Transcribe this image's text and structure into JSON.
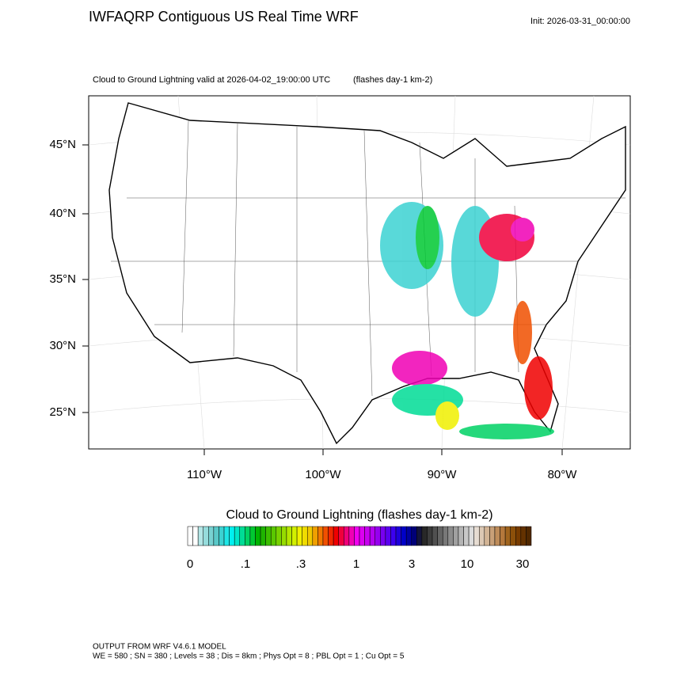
{
  "header": {
    "title": "IWFAQRP Contiguous US Real Time WRF",
    "init": "Init: 2026-03-31_00:00:00"
  },
  "map": {
    "subtitle": "Cloud to Ground Lightning valid at 2026-04-02_19:00:00 UTC",
    "units": "(flashes day-1 km-2)",
    "lat_labels": [
      "45°N",
      "40°N",
      "35°N",
      "30°N",
      "25°N"
    ],
    "lon_labels": [
      "110°W",
      "100°W",
      "90°W",
      "80°W"
    ]
  },
  "colorbar": {
    "title": "Cloud to Ground Lightning  (flashes day-1 km-2)",
    "labels": [
      "0",
      ".1",
      ".3",
      "1",
      "3",
      "10",
      "30"
    ],
    "colors": [
      "#ffffff",
      "#ffffff",
      "#b4e6e6",
      "#96dcdc",
      "#78d2d2",
      "#5ac8c8",
      "#3cd2d2",
      "#1ee6e6",
      "#00f0f0",
      "#00e6c8",
      "#00dc96",
      "#00d264",
      "#00c832",
      "#00b400",
      "#1eb400",
      "#3cbe00",
      "#5ac800",
      "#78d200",
      "#96dc00",
      "#b4e600",
      "#d2f000",
      "#f0f000",
      "#f0dc00",
      "#f0c800",
      "#f0a000",
      "#f07800",
      "#f05000",
      "#f02800",
      "#f00000",
      "#f0003c",
      "#f00078",
      "#f000b4",
      "#f000f0",
      "#dc00f0",
      "#c800f0",
      "#b400f0",
      "#9600f0",
      "#7800f0",
      "#5a00f0",
      "#3c00f0",
      "#1e00dc",
      "#0000c8",
      "#0000a0",
      "#000078",
      "#14143c",
      "#282828",
      "#3c3c3c",
      "#505050",
      "#646464",
      "#787878",
      "#8c8c8c",
      "#a0a0a0",
      "#b4b4b4",
      "#c8c8c8",
      "#dcdcdc",
      "#e6dcd2",
      "#dcc8b4",
      "#d2b496",
      "#c8a078",
      "#be8c5a",
      "#b4783c",
      "#a0641e",
      "#8c500a",
      "#783c00",
      "#643200",
      "#502800"
    ]
  },
  "footer": {
    "lines": [
      "OUTPUT FROM WRF V4.6.1 MODEL",
      "WE = 580 ; SN = 380 ; Levels = 38 ; Dis = 8km ; Phys Opt = 8 ; PBL Opt = 1 ; Cu Opt = 5"
    ]
  }
}
